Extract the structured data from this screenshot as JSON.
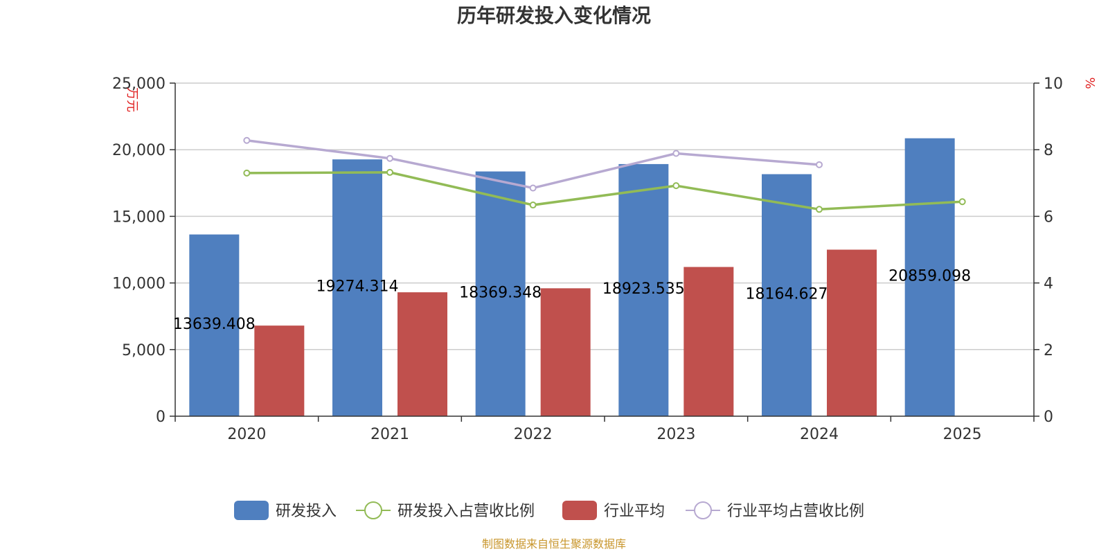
{
  "chart_data": {
    "type": "bar",
    "title": "历年研发投入变化情况",
    "categories": [
      "2020",
      "2021",
      "2022",
      "2023",
      "2024",
      "2025"
    ],
    "y_left": {
      "unit": "万元",
      "range": [
        0,
        25000
      ],
      "ticks": [
        "0",
        "5,000",
        "10,000",
        "15,000",
        "20,000",
        "25,000"
      ]
    },
    "y_right": {
      "unit": "%",
      "range": [
        0,
        10
      ],
      "ticks": [
        "0",
        "2",
        "4",
        "6",
        "8",
        "10"
      ]
    },
    "series": [
      {
        "name": "研发投入",
        "kind": "bar",
        "axis": "left",
        "color": "#4f7fbf",
        "values": [
          13639.408,
          19274.314,
          18369.348,
          18923.535,
          18164.627,
          20859.098
        ],
        "labels": [
          "13639.408",
          "19274.314",
          "18369.348",
          "18923.535",
          "18164.627",
          "20859.098"
        ]
      },
      {
        "name": "研发投入占营收比例",
        "kind": "line",
        "axis": "right",
        "color": "#92bb56",
        "values": [
          7.3,
          7.32,
          6.34,
          6.92,
          6.21,
          6.44
        ]
      },
      {
        "name": "行业平均",
        "kind": "bar",
        "axis": "left",
        "color": "#c0504d",
        "values": [
          6800,
          9300,
          9600,
          11200,
          12500,
          null
        ]
      },
      {
        "name": "行业平均占营收比例",
        "kind": "line",
        "axis": "right",
        "color": "#b7a9d1",
        "values": [
          8.28,
          7.74,
          6.85,
          7.89,
          7.55,
          null
        ]
      }
    ],
    "grid": true,
    "legend": "bottom"
  },
  "source_text": "制图数据来自恒生聚源数据库"
}
